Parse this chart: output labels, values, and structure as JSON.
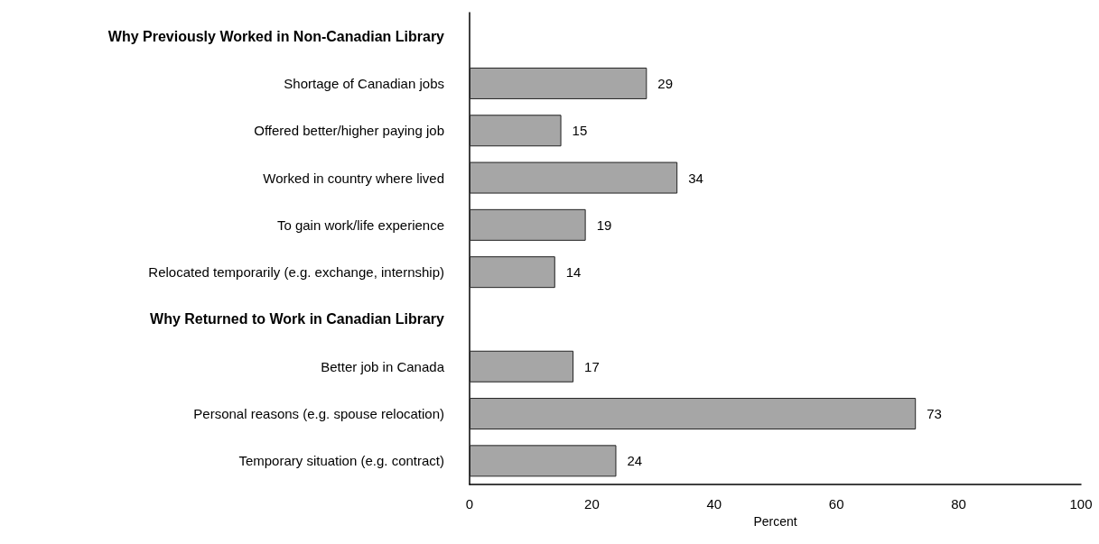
{
  "chart_data": {
    "type": "bar",
    "orientation": "horizontal",
    "categories": [
      "Why Previously Worked in Non-Canadian Library",
      "Shortage of Canadian jobs",
      "Offered better/higher paying job",
      "Worked in country where lived",
      "To gain work/life experience",
      "Relocated temporarily (e.g. exchange, internship)",
      "Why Returned to Work in Canadian Library",
      "Better job in Canada",
      "Personal reasons (e.g. spouse relocation)",
      "Temporary situation (e.g. contract)"
    ],
    "values": [
      null,
      29,
      15,
      34,
      19,
      14,
      null,
      17,
      73,
      24
    ],
    "color": "#a6a6a6",
    "xlabel": "Percent",
    "xlim": [
      0,
      100
    ],
    "xticks": [
      0,
      20,
      40,
      60,
      80,
      100
    ],
    "grid": false,
    "data_labels": true
  }
}
